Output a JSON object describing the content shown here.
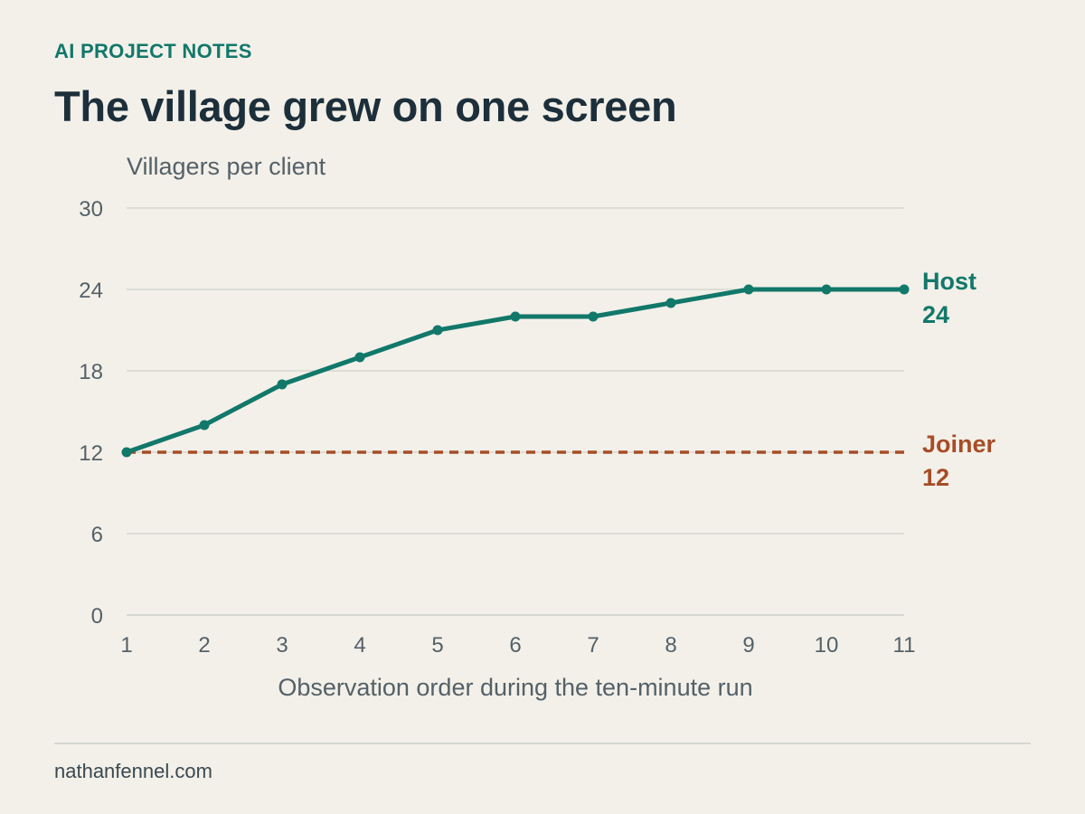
{
  "header": {
    "kicker": "AI PROJECT NOTES",
    "title": "The village grew on one screen"
  },
  "footer": {
    "source": "nathanfennel.com"
  },
  "colors": {
    "background": "#f3f0e9",
    "host": "#11786a",
    "joiner": "#a64d27",
    "grid": "#d4d7d0",
    "axis_text": "#546168",
    "title": "#1c2f3a"
  },
  "chart_data": {
    "type": "line",
    "title": "The village grew on one screen",
    "xlabel": "Observation order during the ten-minute run",
    "ylabel": "Villagers per client",
    "x": [
      1,
      2,
      3,
      4,
      5,
      6,
      7,
      8,
      9,
      10,
      11
    ],
    "xlim": [
      1,
      11
    ],
    "ylim": [
      0,
      30
    ],
    "yticks": [
      0,
      6,
      12,
      18,
      24,
      30
    ],
    "grid": true,
    "legend": "direct labels at right end of lines",
    "series": [
      {
        "name": "Host",
        "end_label": "24",
        "style": "solid",
        "markers": true,
        "color": "#11786a",
        "values": [
          12,
          14,
          17,
          19,
          21,
          22,
          22,
          23,
          24,
          24,
          24
        ]
      },
      {
        "name": "Joiner",
        "end_label": "12",
        "style": "dashed",
        "markers": false,
        "color": "#a64d27",
        "values": [
          12,
          12,
          12,
          12,
          12,
          12,
          12,
          12,
          12,
          12,
          12
        ]
      }
    ]
  }
}
